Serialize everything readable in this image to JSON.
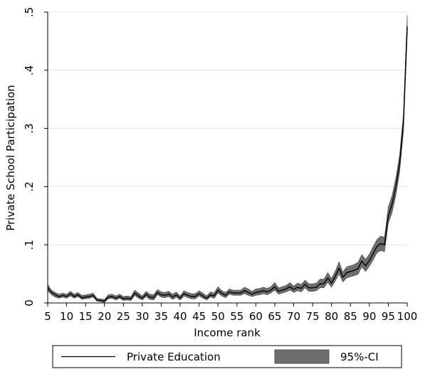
{
  "chart_data": {
    "type": "line",
    "xlabel": "Income rank",
    "ylabel": "Private School Participation",
    "xlim": [
      5,
      100
    ],
    "ylim": [
      0,
      0.5
    ],
    "x_ticks": [
      5,
      10,
      15,
      20,
      25,
      30,
      35,
      40,
      45,
      50,
      55,
      60,
      65,
      70,
      75,
      80,
      85,
      90,
      95,
      100
    ],
    "y_ticks": [
      0,
      0.1,
      0.2,
      0.3,
      0.4,
      0.5
    ],
    "y_tick_labels": [
      "0",
      ".1",
      ".2",
      ".3",
      ".4",
      ".5"
    ],
    "grid": "horizontal",
    "legend_position": "bottom",
    "colors": {
      "line": "#000000",
      "band": "#6e6e6e",
      "grid": "#e6e6e6"
    },
    "series": [
      {
        "name": "Private Education",
        "x": [
          5,
          6,
          7,
          8,
          9,
          10,
          11,
          12,
          13,
          14,
          15,
          16,
          17,
          18,
          19,
          20,
          21,
          22,
          23,
          24,
          25,
          26,
          27,
          28,
          29,
          30,
          31,
          32,
          33,
          34,
          35,
          36,
          37,
          38,
          39,
          40,
          41,
          42,
          43,
          44,
          45,
          46,
          47,
          48,
          49,
          50,
          51,
          52,
          53,
          54,
          55,
          56,
          57,
          58,
          59,
          60,
          61,
          62,
          63,
          64,
          65,
          66,
          67,
          68,
          69,
          70,
          71,
          72,
          73,
          74,
          75,
          76,
          77,
          78,
          79,
          80,
          81,
          82,
          83,
          84,
          85,
          86,
          87,
          88,
          89,
          90,
          91,
          92,
          93,
          94,
          95,
          96,
          97,
          98,
          99,
          100
        ],
        "y": [
          0.026,
          0.018,
          0.014,
          0.011,
          0.013,
          0.011,
          0.016,
          0.011,
          0.014,
          0.009,
          0.01,
          0.011,
          0.013,
          0.005,
          0.004,
          0.003,
          0.01,
          0.011,
          0.008,
          0.011,
          0.007,
          0.008,
          0.007,
          0.017,
          0.012,
          0.008,
          0.015,
          0.01,
          0.009,
          0.018,
          0.014,
          0.013,
          0.015,
          0.01,
          0.014,
          0.008,
          0.016,
          0.013,
          0.011,
          0.011,
          0.016,
          0.012,
          0.008,
          0.014,
          0.012,
          0.022,
          0.016,
          0.013,
          0.019,
          0.017,
          0.017,
          0.017,
          0.021,
          0.018,
          0.015,
          0.018,
          0.019,
          0.021,
          0.019,
          0.022,
          0.028,
          0.02,
          0.022,
          0.024,
          0.028,
          0.023,
          0.027,
          0.025,
          0.032,
          0.026,
          0.026,
          0.027,
          0.033,
          0.033,
          0.043,
          0.034,
          0.046,
          0.06,
          0.044,
          0.052,
          0.054,
          0.056,
          0.059,
          0.072,
          0.064,
          0.073,
          0.085,
          0.097,
          0.102,
          0.1,
          0.15,
          0.17,
          0.2,
          0.24,
          0.31,
          0.475
        ]
      },
      {
        "name": "95%-CI",
        "lower": [
          0.021,
          0.014,
          0.01,
          0.008,
          0.01,
          0.008,
          0.012,
          0.008,
          0.011,
          0.006,
          0.007,
          0.008,
          0.01,
          0.003,
          0.002,
          0.001,
          0.007,
          0.008,
          0.005,
          0.008,
          0.004,
          0.005,
          0.004,
          0.013,
          0.008,
          0.005,
          0.011,
          0.006,
          0.005,
          0.014,
          0.01,
          0.009,
          0.011,
          0.006,
          0.01,
          0.005,
          0.012,
          0.009,
          0.007,
          0.007,
          0.012,
          0.008,
          0.005,
          0.01,
          0.008,
          0.017,
          0.012,
          0.009,
          0.015,
          0.013,
          0.013,
          0.013,
          0.016,
          0.013,
          0.011,
          0.013,
          0.014,
          0.016,
          0.014,
          0.017,
          0.022,
          0.015,
          0.017,
          0.019,
          0.022,
          0.018,
          0.021,
          0.019,
          0.026,
          0.02,
          0.02,
          0.021,
          0.026,
          0.026,
          0.035,
          0.027,
          0.038,
          0.05,
          0.036,
          0.043,
          0.045,
          0.047,
          0.049,
          0.062,
          0.054,
          0.063,
          0.074,
          0.086,
          0.09,
          0.088,
          0.137,
          0.155,
          0.185,
          0.225,
          0.295,
          0.46
        ],
        "upper": [
          0.032,
          0.022,
          0.018,
          0.015,
          0.017,
          0.015,
          0.02,
          0.015,
          0.018,
          0.013,
          0.014,
          0.015,
          0.017,
          0.008,
          0.007,
          0.006,
          0.014,
          0.015,
          0.012,
          0.015,
          0.011,
          0.012,
          0.011,
          0.022,
          0.017,
          0.012,
          0.02,
          0.015,
          0.014,
          0.023,
          0.019,
          0.018,
          0.02,
          0.015,
          0.019,
          0.012,
          0.021,
          0.018,
          0.016,
          0.016,
          0.021,
          0.017,
          0.012,
          0.019,
          0.017,
          0.028,
          0.021,
          0.018,
          0.024,
          0.022,
          0.022,
          0.022,
          0.027,
          0.024,
          0.02,
          0.024,
          0.025,
          0.027,
          0.025,
          0.028,
          0.035,
          0.026,
          0.028,
          0.03,
          0.035,
          0.029,
          0.034,
          0.032,
          0.039,
          0.033,
          0.033,
          0.034,
          0.041,
          0.041,
          0.052,
          0.042,
          0.055,
          0.071,
          0.053,
          0.062,
          0.064,
          0.066,
          0.07,
          0.083,
          0.075,
          0.084,
          0.097,
          0.109,
          0.115,
          0.113,
          0.165,
          0.185,
          0.215,
          0.255,
          0.325,
          0.495
        ]
      }
    ],
    "legend": [
      {
        "label": "Private Education",
        "kind": "line"
      },
      {
        "label": "95%-CI",
        "kind": "band"
      }
    ]
  }
}
